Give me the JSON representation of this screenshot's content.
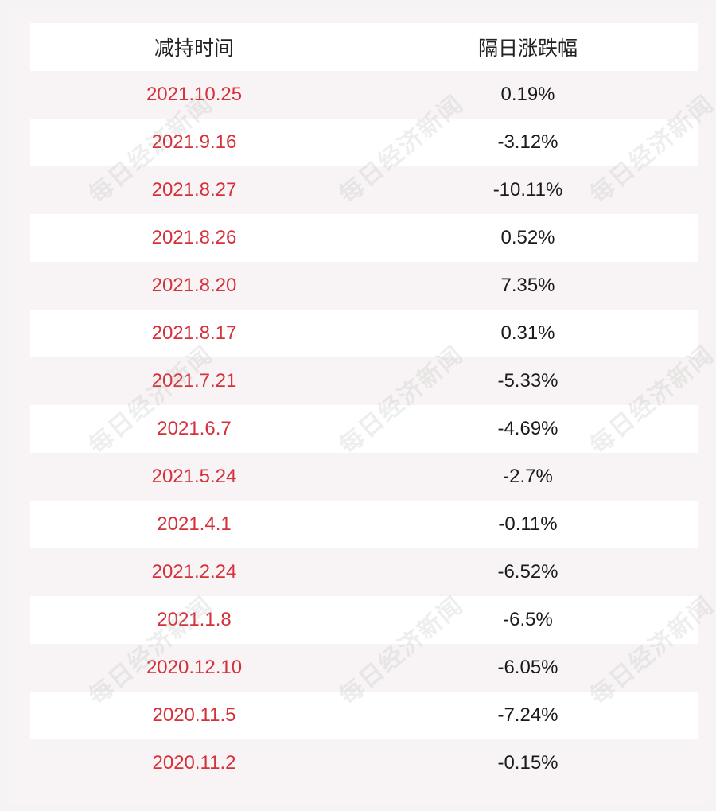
{
  "table": {
    "headers": {
      "date": "减持时间",
      "change": "隔日涨跌幅"
    },
    "rows": [
      {
        "date": "2021.10.25",
        "change": "0.19%"
      },
      {
        "date": "2021.9.16",
        "change": "-3.12%"
      },
      {
        "date": "2021.8.27",
        "change": "-10.11%"
      },
      {
        "date": "2021.8.26",
        "change": "0.52%"
      },
      {
        "date": "2021.8.20",
        "change": "7.35%"
      },
      {
        "date": "2021.8.17",
        "change": "0.31%"
      },
      {
        "date": "2021.7.21",
        "change": "-5.33%"
      },
      {
        "date": "2021.6.7",
        "change": "-4.69%"
      },
      {
        "date": "2021.5.24",
        "change": "-2.7%"
      },
      {
        "date": "2021.4.1",
        "change": "-0.11%"
      },
      {
        "date": "2021.2.24",
        "change": "-6.52%"
      },
      {
        "date": "2021.1.8",
        "change": "-6.5%"
      },
      {
        "date": "2020.12.10",
        "change": "-6.05%"
      },
      {
        "date": "2020.11.5",
        "change": "-7.24%"
      },
      {
        "date": "2020.11.2",
        "change": "-0.15%"
      }
    ]
  },
  "watermark": "每日经济新闻",
  "colors": {
    "date_text": "#d6303a",
    "change_text": "#1a1a1a",
    "page_bg": "#f8f4f5",
    "row_white": "#ffffff"
  }
}
